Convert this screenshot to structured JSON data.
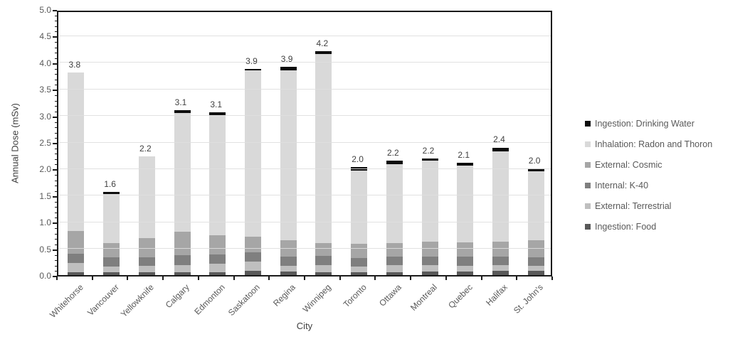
{
  "chart_data": {
    "type": "stacked-bar",
    "title": "",
    "xlabel": "City",
    "ylabel": "Annual Dose (mSv)",
    "ylim": [
      0.0,
      5.0
    ],
    "ytick_step": 0.5,
    "y_minor_tick_step": 0.1,
    "grid": true,
    "legend_position": "right",
    "categories": [
      "Whitehorse",
      "Vancouver",
      "Yellowknife",
      "Calgary",
      "Edmonton",
      "Saskatoon",
      "Regina",
      "Winnipeg",
      "Toronto",
      "Ottawa",
      "Montreal",
      "Quebec",
      "Halifax",
      "St. John's"
    ],
    "series": [
      {
        "name": "Ingestion: Food",
        "color": "#595959",
        "values": [
          0.05,
          0.05,
          0.05,
          0.06,
          0.06,
          0.08,
          0.07,
          0.06,
          0.05,
          0.05,
          0.07,
          0.07,
          0.08,
          0.08
        ]
      },
      {
        "name": "External: Terrestrial",
        "color": "#bfbfbf",
        "values": [
          0.18,
          0.11,
          0.12,
          0.13,
          0.16,
          0.18,
          0.1,
          0.13,
          0.11,
          0.14,
          0.12,
          0.1,
          0.11,
          0.09
        ]
      },
      {
        "name": "Internal: K-40",
        "color": "#7f7f7f",
        "values": [
          0.17,
          0.17,
          0.17,
          0.18,
          0.17,
          0.17,
          0.18,
          0.17,
          0.16,
          0.16,
          0.16,
          0.18,
          0.16,
          0.16
        ]
      },
      {
        "name": "External: Cosmic",
        "color": "#a6a6a6",
        "values": [
          0.43,
          0.27,
          0.36,
          0.45,
          0.36,
          0.29,
          0.31,
          0.24,
          0.27,
          0.25,
          0.28,
          0.27,
          0.28,
          0.32
        ]
      },
      {
        "name": "Inhalation: Radon and Thoron",
        "color": "#d9d9d9",
        "values": [
          2.98,
          0.93,
          1.53,
          2.23,
          2.26,
          3.13,
          3.19,
          3.56,
          1.38,
          1.48,
          1.52,
          1.44,
          1.69,
          1.3
        ]
      },
      {
        "name": "Ingestion: Drinking Water",
        "color": "#0d0d0d",
        "values": [
          0.0,
          0.04,
          0.0,
          0.05,
          0.05,
          0.03,
          0.07,
          0.05,
          0.06,
          0.07,
          0.04,
          0.05,
          0.08,
          0.05
        ]
      }
    ],
    "bar_total_labels": [
      "3.8",
      "1.6",
      "2.2",
      "3.1",
      "3.1",
      "3.9",
      "3.9",
      "4.2",
      "2.0",
      "2.2",
      "2.2",
      "2.1",
      "2.4",
      "2.0"
    ],
    "ytick_labels": [
      "0.0",
      "0.5",
      "1.0",
      "1.5",
      "2.0",
      "2.5",
      "3.0",
      "3.5",
      "4.0",
      "4.5",
      "5.0"
    ]
  }
}
